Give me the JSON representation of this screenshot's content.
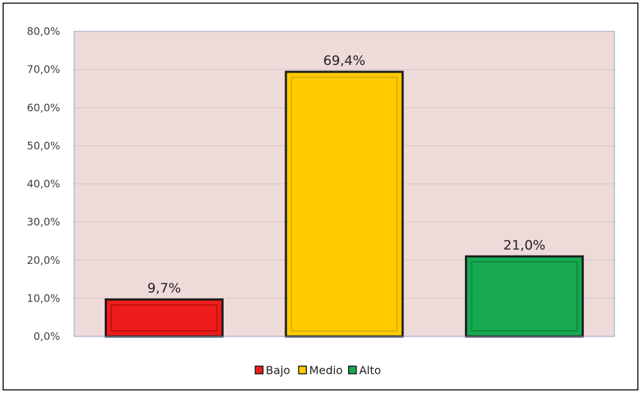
{
  "chart_data": {
    "type": "bar",
    "categories": [
      "Bajo",
      "Medio",
      "Alto"
    ],
    "values": [
      9.7,
      69.4,
      21.0
    ],
    "value_labels": [
      "9,7%",
      "69,4%",
      "21,0%"
    ],
    "y_ticks": [
      0,
      10,
      20,
      30,
      40,
      50,
      60,
      70,
      80
    ],
    "y_tick_labels": [
      "0,0%",
      "10,0%",
      "20,0%",
      "30,0%",
      "40,0%",
      "50,0%",
      "60,0%",
      "70,0%",
      "80,0%"
    ],
    "ylim": [
      0,
      80
    ],
    "title": "",
    "xlabel": "",
    "ylabel": "",
    "grid": true,
    "legend": {
      "placement": "bottom-center",
      "entries": [
        "Bajo",
        "Medio",
        "Alto"
      ]
    },
    "colors": {
      "plot_background": "#efdada",
      "gridline": "#d2c2c2",
      "plot_border": "#8aa0bb",
      "bar_outline": "#1a1a1a",
      "series": [
        "#ee1c1c",
        "#fecb00",
        "#17a850"
      ],
      "series_inner": [
        "#c40e0e",
        "#e3ae00",
        "#0e8a3e"
      ]
    }
  }
}
